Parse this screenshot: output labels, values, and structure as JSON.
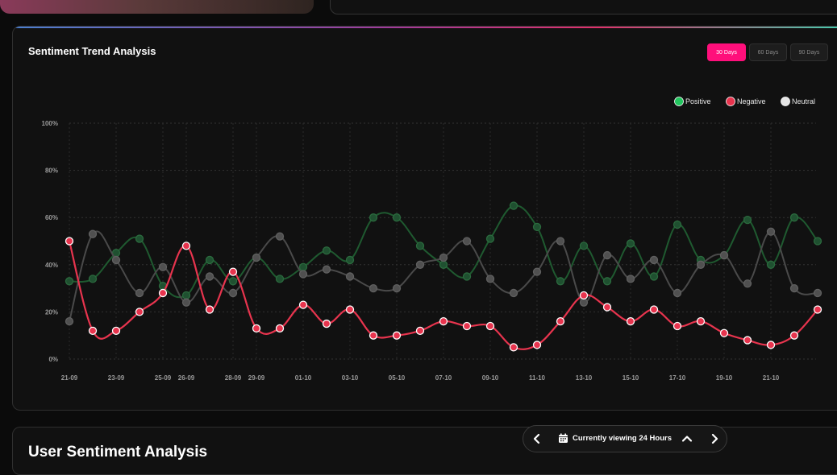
{
  "chart_card": {
    "title": "Sentiment Trend Analysis",
    "range_buttons": [
      "30 Days",
      "60 Days",
      "90 Days"
    ],
    "active_range": "30 Days",
    "accent_color": "#ff0f7b"
  },
  "bottom_section": {
    "title": "User Sentiment Analysis"
  },
  "view_control": {
    "label": "Currently viewing 24 Hours",
    "icons": [
      "chevron-left-icon",
      "calendar-icon",
      "chevron-up-icon",
      "chevron-right-icon"
    ]
  },
  "chart_data": {
    "type": "line",
    "title": "",
    "xlabel": "",
    "ylabel": "",
    "ylim": [
      0,
      100
    ],
    "y_ticks": [
      "0%",
      "20%",
      "40%",
      "60%",
      "80%",
      "100%"
    ],
    "x": [
      "21-09",
      "22-09",
      "23-09",
      "24-09",
      "25-09",
      "26-09",
      "27-09",
      "28-09",
      "29-09",
      "30-09",
      "01-10",
      "02-10",
      "03-10",
      "04-10",
      "05-10",
      "06-10",
      "07-10",
      "08-10",
      "09-10",
      "10-10",
      "11-10",
      "12-10",
      "13-10",
      "14-10",
      "15-10",
      "16-10",
      "17-10",
      "18-10",
      "19-10",
      "20-10",
      "21-10",
      "22-10",
      "23-10"
    ],
    "x_tick_labels": [
      "21-09",
      "23-09",
      "25-09",
      "26-09",
      "28-09",
      "29-09",
      "01-10",
      "03-10",
      "05-10",
      "07-10",
      "09-10",
      "11-10",
      "13-10",
      "15-10",
      "17-10",
      "19-10",
      "21-10"
    ],
    "grid": true,
    "legend_position": "top-right",
    "series": [
      {
        "name": "Positive",
        "color": "#22c55e",
        "values": [
          33,
          34,
          45,
          51,
          31,
          27,
          42,
          33,
          43,
          34,
          39,
          46,
          42,
          60,
          60,
          48,
          40,
          35,
          51,
          65,
          56,
          33,
          48,
          33,
          49,
          35,
          57,
          42,
          44,
          59,
          40,
          60,
          50
        ]
      },
      {
        "name": "Negative",
        "color": "#e8344e",
        "values": [
          50,
          12,
          12,
          20,
          28,
          48,
          21,
          37,
          13,
          13,
          23,
          15,
          21,
          10,
          10,
          12,
          16,
          14,
          14,
          5,
          6,
          16,
          27,
          22,
          16,
          21,
          14,
          16,
          11,
          8,
          6,
          10,
          21
        ]
      },
      {
        "name": "Neutral",
        "color": "#e5e5e5",
        "values": [
          16,
          53,
          42,
          28,
          39,
          24,
          35,
          28,
          43,
          52,
          36,
          38,
          35,
          30,
          30,
          40,
          43,
          50,
          34,
          28,
          37,
          50,
          24,
          44,
          34,
          42,
          28,
          40,
          44,
          32,
          54,
          30,
          28
        ]
      }
    ]
  }
}
